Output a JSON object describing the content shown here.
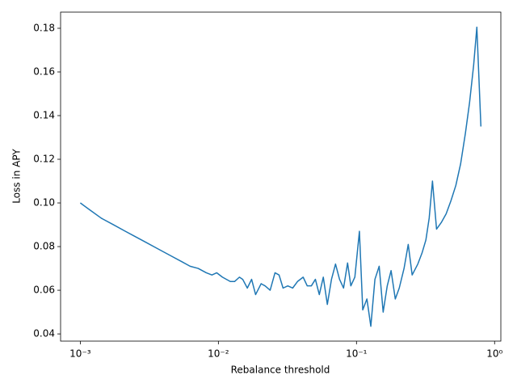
{
  "chart_data": {
    "type": "line",
    "xlabel": "Rebalance threshold",
    "ylabel": "Loss in APY",
    "xscale": "log",
    "x": [
      0.001,
      0.00116,
      0.00142,
      0.00174,
      0.00212,
      0.00243,
      0.00298,
      0.00364,
      0.00446,
      0.00546,
      0.00624,
      0.00714,
      0.00817,
      0.00898,
      0.00973,
      0.0107,
      0.0122,
      0.0131,
      0.0142,
      0.015,
      0.0162,
      0.0174,
      0.0186,
      0.0204,
      0.0218,
      0.0237,
      0.0257,
      0.0275,
      0.0294,
      0.0318,
      0.0345,
      0.0374,
      0.0411,
      0.044,
      0.0471,
      0.0504,
      0.0538,
      0.0575,
      0.0615,
      0.0659,
      0.0705,
      0.0754,
      0.0806,
      0.0862,
      0.091,
      0.0973,
      0.105,
      0.111,
      0.119,
      0.127,
      0.136,
      0.146,
      0.156,
      0.167,
      0.178,
      0.191,
      0.204,
      0.221,
      0.237,
      0.253,
      0.278,
      0.298,
      0.318,
      0.336,
      0.355,
      0.38,
      0.411,
      0.446,
      0.483,
      0.524,
      0.568,
      0.615,
      0.659,
      0.705,
      0.744,
      0.796
    ],
    "series": [
      {
        "color": "#1f77b4",
        "values": [
          0.1,
          0.097,
          0.093,
          0.09,
          0.087,
          0.085,
          0.082,
          0.079,
          0.076,
          0.073,
          0.071,
          0.07,
          0.068,
          0.067,
          0.068,
          0.066,
          0.064,
          0.064,
          0.066,
          0.065,
          0.061,
          0.065,
          0.058,
          0.063,
          0.062,
          0.06,
          0.068,
          0.067,
          0.061,
          0.062,
          0.061,
          0.064,
          0.066,
          0.062,
          0.062,
          0.065,
          0.058,
          0.066,
          0.0535,
          0.065,
          0.072,
          0.065,
          0.061,
          0.0725,
          0.062,
          0.066,
          0.087,
          0.051,
          0.056,
          0.0435,
          0.065,
          0.071,
          0.05,
          0.062,
          0.069,
          0.056,
          0.061,
          0.07,
          0.081,
          0.067,
          0.072,
          0.077,
          0.083,
          0.093,
          0.11,
          0.088,
          0.091,
          0.095,
          0.101,
          0.108,
          0.118,
          0.132,
          0.146,
          0.163,
          0.1805,
          0.135
        ]
      }
    ],
    "xlim": [
      0.00072,
      1.11
    ],
    "ylim": [
      0.0367,
      0.1874
    ],
    "xticks": [
      {
        "value": 0.001,
        "label": "10⁻³"
      },
      {
        "value": 0.01,
        "label": "10⁻²"
      },
      {
        "value": 0.1,
        "label": "10⁻¹"
      },
      {
        "value": 1,
        "label": "10⁰"
      }
    ],
    "yticks": [
      0.04,
      0.06,
      0.08,
      {
        "value": 0.1,
        "label": "0.10"
      },
      0.12,
      0.14,
      0.16,
      0.18
    ]
  }
}
